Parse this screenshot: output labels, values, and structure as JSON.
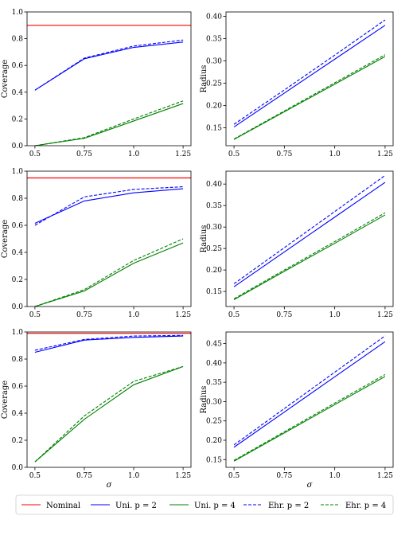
{
  "legend": [
    {
      "label": "Nominal",
      "color": "#ff0000",
      "dash": false
    },
    {
      "label": "Uni. p = 2",
      "color": "#0000ff",
      "dash": false
    },
    {
      "label": "Uni. p = 4",
      "color": "#008000",
      "dash": false
    },
    {
      "label": "Ehr. p = 2",
      "color": "#0000ff",
      "dash": true
    },
    {
      "label": "Ehr. p = 4",
      "color": "#008000",
      "dash": true
    }
  ],
  "colors": {
    "nominal": "#ff0000",
    "p2": "#0000ff",
    "p4": "#008000"
  },
  "chart_data": [
    {
      "type": "line",
      "ylabel": "Coverage",
      "xlabel": "",
      "x": [
        0.5,
        0.75,
        1.0,
        1.25
      ],
      "xlim": [
        0.5,
        1.25
      ],
      "ylim": [
        0.0,
        1.0
      ],
      "xticks": [
        "0.5",
        "0.75",
        "1.0",
        "1.25"
      ],
      "yticks": [
        "0.0",
        "0.2",
        "0.4",
        "0.6",
        "0.8",
        "1.0"
      ],
      "nominal": 0.9,
      "series": [
        {
          "name": "Uni. p = 2",
          "values": [
            0.415,
            0.65,
            0.735,
            0.775
          ]
        },
        {
          "name": "Ehr. p = 2",
          "values": [
            0.415,
            0.655,
            0.745,
            0.79
          ]
        },
        {
          "name": "Uni. p = 4",
          "values": [
            0.0,
            0.055,
            0.185,
            0.315
          ]
        },
        {
          "name": "Ehr. p = 4",
          "values": [
            0.0,
            0.06,
            0.2,
            0.335
          ]
        }
      ]
    },
    {
      "type": "line",
      "ylabel": "Radius",
      "xlabel": "",
      "x": [
        0.5,
        0.75,
        1.0,
        1.25
      ],
      "xlim": [
        0.5,
        1.25
      ],
      "ylim": [
        0.11,
        0.41
      ],
      "xticks": [
        "0.5",
        "0.75",
        "1.0",
        "1.25"
      ],
      "yticks": [
        "0.15",
        "0.20",
        "0.25",
        "0.30",
        "0.35",
        "0.40"
      ],
      "series": [
        {
          "name": "Uni. p = 2",
          "values": [
            0.152,
            0.228,
            0.304,
            0.38
          ]
        },
        {
          "name": "Ehr. p = 2",
          "values": [
            0.158,
            0.235,
            0.313,
            0.392
          ]
        },
        {
          "name": "Uni. p = 4",
          "values": [
            0.124,
            0.186,
            0.248,
            0.31
          ]
        },
        {
          "name": "Ehr. p = 4",
          "values": [
            0.125,
            0.188,
            0.251,
            0.314
          ]
        }
      ]
    },
    {
      "type": "line",
      "ylabel": "Coverage",
      "xlabel": "",
      "x": [
        0.5,
        0.75,
        1.0,
        1.25
      ],
      "xlim": [
        0.5,
        1.25
      ],
      "ylim": [
        0.0,
        1.0
      ],
      "xticks": [
        "0.5",
        "0.75",
        "1.0",
        "1.25"
      ],
      "yticks": [
        "0.0",
        "0.2",
        "0.4",
        "0.6",
        "0.8",
        "1.0"
      ],
      "nominal": 0.95,
      "series": [
        {
          "name": "Uni. p = 2",
          "values": [
            0.615,
            0.78,
            0.84,
            0.87
          ]
        },
        {
          "name": "Ehr. p = 2",
          "values": [
            0.6,
            0.81,
            0.865,
            0.885
          ]
        },
        {
          "name": "Uni. p = 4",
          "values": [
            0.0,
            0.115,
            0.32,
            0.47
          ]
        },
        {
          "name": "Ehr. p = 4",
          "values": [
            0.0,
            0.125,
            0.34,
            0.5
          ]
        }
      ]
    },
    {
      "type": "line",
      "ylabel": "Radius",
      "xlabel": "",
      "x": [
        0.5,
        0.75,
        1.0,
        1.25
      ],
      "xlim": [
        0.5,
        1.25
      ],
      "ylim": [
        0.115,
        0.43
      ],
      "xticks": [
        "0.5",
        "0.75",
        "1.0",
        "1.25"
      ],
      "yticks": [
        "0.15",
        "0.20",
        "0.25",
        "0.30",
        "0.35",
        "0.40"
      ],
      "series": [
        {
          "name": "Uni. p = 2",
          "values": [
            0.161,
            0.242,
            0.323,
            0.404
          ]
        },
        {
          "name": "Ehr. p = 2",
          "values": [
            0.168,
            0.252,
            0.336,
            0.42
          ]
        },
        {
          "name": "Uni. p = 4",
          "values": [
            0.131,
            0.197,
            0.262,
            0.328
          ]
        },
        {
          "name": "Ehr. p = 4",
          "values": [
            0.133,
            0.2,
            0.266,
            0.333
          ]
        }
      ]
    },
    {
      "type": "line",
      "ylabel": "Coverage",
      "xlabel": "σ",
      "x": [
        0.5,
        0.75,
        1.0,
        1.25
      ],
      "xlim": [
        0.5,
        1.25
      ],
      "ylim": [
        0.0,
        1.0
      ],
      "xticks": [
        "0.5",
        "0.75",
        "1.0",
        "1.25"
      ],
      "yticks": [
        "0.0",
        "0.2",
        "0.4",
        "0.6",
        "0.8",
        "1.0"
      ],
      "nominal": 0.99,
      "series": [
        {
          "name": "Uni. p = 2",
          "values": [
            0.85,
            0.94,
            0.96,
            0.97
          ]
        },
        {
          "name": "Ehr. p = 2",
          "values": [
            0.865,
            0.945,
            0.97,
            0.975
          ]
        },
        {
          "name": "Uni. p = 4",
          "values": [
            0.04,
            0.355,
            0.61,
            0.745
          ]
        },
        {
          "name": "Ehr. p = 4",
          "values": [
            0.04,
            0.38,
            0.635,
            0.745
          ]
        }
      ]
    },
    {
      "type": "line",
      "ylabel": "Radius",
      "xlabel": "σ",
      "x": [
        0.5,
        0.75,
        1.0,
        1.25
      ],
      "xlim": [
        0.5,
        1.25
      ],
      "ylim": [
        0.13,
        0.48
      ],
      "xticks": [
        "0.5",
        "0.75",
        "1.0",
        "1.25"
      ],
      "yticks": [
        "0.15",
        "0.20",
        "0.25",
        "0.30",
        "0.35",
        "0.40",
        "0.45"
      ],
      "series": [
        {
          "name": "Uni. p = 2",
          "values": [
            0.182,
            0.273,
            0.364,
            0.455
          ]
        },
        {
          "name": "Ehr. p = 2",
          "values": [
            0.188,
            0.282,
            0.376,
            0.47
          ]
        },
        {
          "name": "Uni. p = 4",
          "values": [
            0.146,
            0.219,
            0.292,
            0.365
          ]
        },
        {
          "name": "Ehr. p = 4",
          "values": [
            0.148,
            0.222,
            0.296,
            0.37
          ]
        }
      ]
    }
  ]
}
